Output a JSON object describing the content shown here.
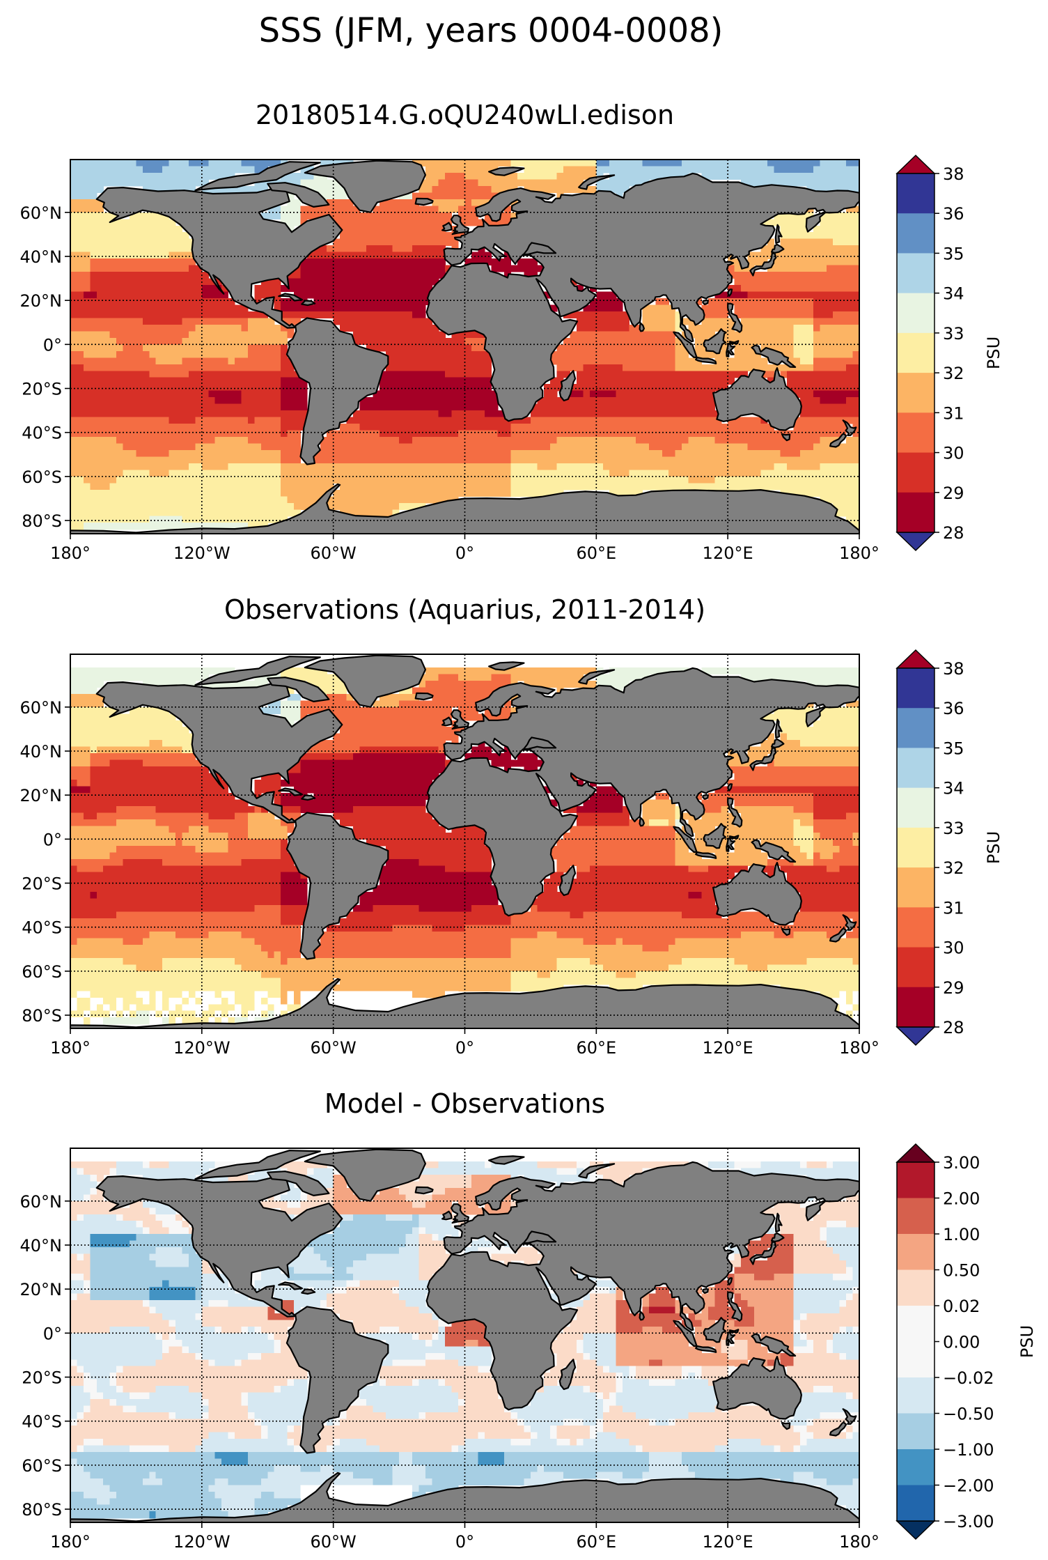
{
  "suptitle": "SSS (JFM, years 0004-0008)",
  "panels": [
    {
      "title": "20180514.G.oQU240wLI.edison",
      "field": "model",
      "colorbar": {
        "label": "PSU",
        "ticks": [
          "28",
          "29",
          "30",
          "31",
          "32",
          "33",
          "34",
          "35",
          "36",
          "38"
        ],
        "colors": [
          "#313695",
          "#6190c5",
          "#aed4e7",
          "#e8f4e2",
          "#fdeea3",
          "#fcb464",
          "#f46d43",
          "#d73027",
          "#a50026"
        ],
        "under": "#313695",
        "over": "#a50026"
      }
    },
    {
      "title": "Observations (Aquarius, 2011-2014)",
      "field": "obs",
      "colorbar": {
        "label": "PSU",
        "ticks": [
          "28",
          "29",
          "30",
          "31",
          "32",
          "33",
          "34",
          "35",
          "36",
          "38"
        ],
        "colors": [
          "#313695",
          "#6190c5",
          "#aed4e7",
          "#e8f4e2",
          "#fdeea3",
          "#fcb464",
          "#f46d43",
          "#d73027",
          "#a50026"
        ],
        "under": "#313695",
        "over": "#a50026"
      }
    },
    {
      "title": "Model - Observations",
      "field": "bias",
      "colorbar": {
        "label": "PSU",
        "ticks": [
          "3.00",
          "2.00",
          "1.00",
          "0.50",
          "0.02",
          "0.00",
          "−0.02",
          "−0.50",
          "−1.00",
          "−2.00",
          "−3.00"
        ],
        "colors": [
          "#b2182b",
          "#d6604d",
          "#f4a582",
          "#fbdbc8",
          "#f7f7f7",
          "#f7f7f7",
          "#d6e8f2",
          "#a6cee3",
          "#4393c3",
          "#2166ac"
        ],
        "under": "#053061",
        "over": "#67001f"
      }
    }
  ],
  "lat_ticks": [
    "60°N",
    "40°N",
    "20°N",
    "0°",
    "20°S",
    "40°S",
    "60°S",
    "80°S"
  ],
  "lon_ticks": [
    "180°",
    "120°W",
    "60°W",
    "0°",
    "60°E",
    "120°E",
    "180°"
  ],
  "land_color": "#808080"
}
